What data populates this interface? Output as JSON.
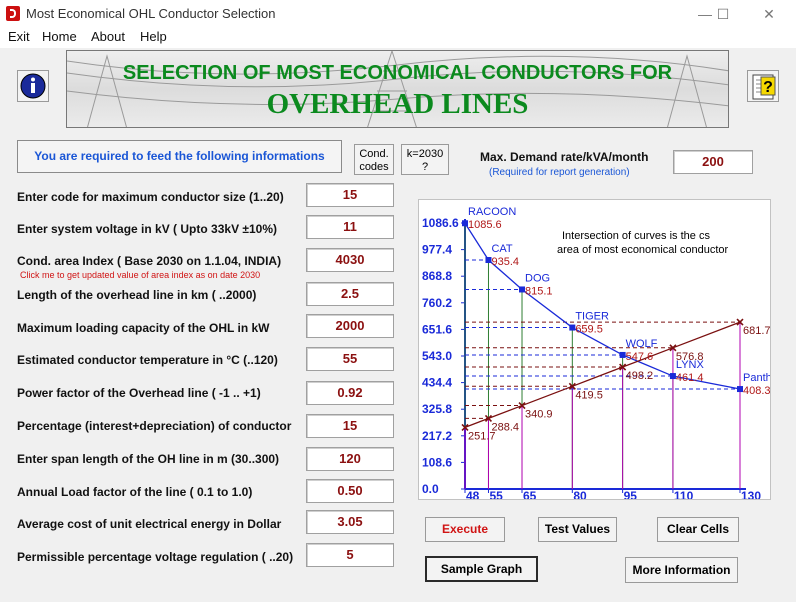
{
  "window": {
    "title": "Most Economical OHL Conductor Selection",
    "minimize": "—",
    "maximize": "☐",
    "close": "✕"
  },
  "menu": [
    "Exit",
    "Home",
    "About",
    "Help"
  ],
  "banner": {
    "line1": "SELECTION OF MOST ECONOMICAL CONDUCTORS FOR",
    "line2": "OVERHEAD LINES"
  },
  "icons": {
    "info": "info-icon",
    "help": "help-question-icon"
  },
  "notice": "You are required to feed the following informations",
  "buttons": {
    "cond_codes_1": "Cond.",
    "cond_codes_2": "codes",
    "k2030_1": "k=2030",
    "k2030_2": "?",
    "execute": "Execute",
    "test_values": "Test Values",
    "clear_cells": "Clear Cells",
    "sample_graph": "Sample Graph",
    "more_info": "More Information"
  },
  "max_demand": {
    "label": "Max. Demand rate/kVA/month",
    "sub": "(Required for report generation)",
    "value": "200"
  },
  "fields": [
    {
      "label": "Enter code for maximum conductor size (1..20)",
      "value": "15"
    },
    {
      "label": "Enter system voltage in kV ( Upto 33kV ±10%)",
      "value": "11"
    },
    {
      "label": "Cond. area Index ( Base 2030 on 1.1.04, INDIA)",
      "value": "4030"
    },
    {
      "label": "Length of the overhead line in km ( ..2000)",
      "value": "2.5"
    },
    {
      "label": "Maximum loading capacity of the OHL in kW",
      "value": "2000"
    },
    {
      "label": "Estimated conductor temperature in °C (..120)",
      "value": "55"
    },
    {
      "label": "Power factor of the Overhead line ( -1 .. +1)",
      "value": "0.92"
    },
    {
      "label": "Percentage (interest+depreciation) of conductor",
      "value": "15"
    },
    {
      "label": "Enter span length of the OH line in m (30..300)",
      "value": "120"
    },
    {
      "label": "Annual Load factor of the line ( 0.1 to 1.0)",
      "value": "0.50"
    },
    {
      "label": "Average cost of unit electrical energy in Dollar",
      "value": "3.05"
    },
    {
      "label": "Permissible percentage voltage regulation ( ..20)",
      "value": "5"
    }
  ],
  "area_note": "Click me to get updated value of area index as on date      2030",
  "chart_data": {
    "type": "line",
    "annotation": [
      "Intersection of curves is the cs",
      "area of most economical conductor"
    ],
    "ylim": [
      0,
      1086.6
    ],
    "yticks": [
      "1086.6",
      "977.4",
      "868.8",
      "760.2",
      "651.6",
      "543.0",
      "434.4",
      "325.8",
      "217.2",
      "108.6",
      "0.0"
    ],
    "xticks": [
      "48",
      "55",
      "65",
      "80",
      "95",
      "110",
      "130"
    ],
    "x": [
      48,
      55,
      65,
      80,
      95,
      110,
      130
    ],
    "series": [
      {
        "values": [
          1085.6,
          935.4,
          815.1,
          659.5,
          547.6,
          461.4,
          408.3
        ],
        "labels": [
          "1085.6",
          "935.4",
          "815.1",
          "659.5",
          "547.6",
          "461.4",
          "408.3"
        ],
        "names": [
          "RACOON",
          "CAT",
          "DOG",
          "TIGER",
          "WOLF",
          "LYNX",
          "Panth"
        ],
        "color": "#1a2ad8"
      },
      {
        "values": [
          251.7,
          288.4,
          340.9,
          419.5,
          498.2,
          576.8,
          681.7
        ],
        "labels": [
          "251.7",
          "288.4",
          "340.9",
          "419.5",
          "498.2",
          "576.8",
          "681.7"
        ],
        "color": "#7a1010"
      }
    ],
    "colors": {
      "axis": "#1a2ad8",
      "drop_a": "#2e7d32",
      "drop_b": "#b000b0",
      "label": "#b01818"
    }
  }
}
